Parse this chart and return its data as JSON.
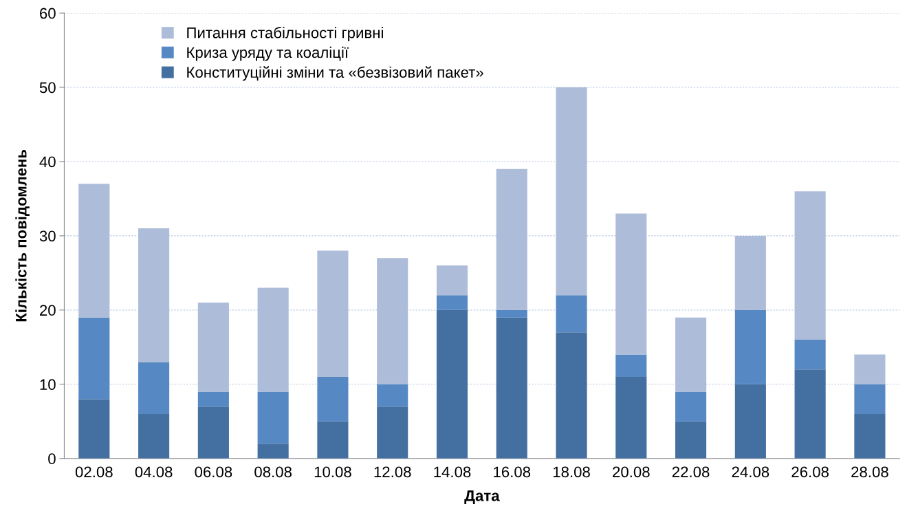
{
  "chart_data": {
    "type": "bar",
    "stacked": true,
    "xlabel": "Дата",
    "ylabel": "Кількість повідомлень",
    "categories": [
      "02.08",
      "04.08",
      "06.08",
      "08.08",
      "10.08",
      "12.08",
      "14.08",
      "16.08",
      "18.08",
      "20.08",
      "22.08",
      "24.08",
      "26.08",
      "28.08"
    ],
    "series": [
      {
        "name": "Конституційні зміни та «безвізовий пакет»",
        "color": "#446fa1",
        "values": [
          8,
          6,
          7,
          2,
          5,
          7,
          20,
          19,
          17,
          11,
          5,
          10,
          12,
          6
        ]
      },
      {
        "name": "Криза уряду та коаліції",
        "color": "#5689c3",
        "values": [
          11,
          7,
          2,
          7,
          6,
          3,
          2,
          1,
          5,
          3,
          4,
          10,
          4,
          4
        ]
      },
      {
        "name": "Питання стабільності гривні",
        "color": "#adbdd9",
        "values": [
          18,
          18,
          12,
          14,
          17,
          17,
          4,
          19,
          28,
          19,
          10,
          10,
          20,
          4
        ]
      }
    ],
    "ylim": [
      0,
      60
    ],
    "yticks": [
      0,
      10,
      20,
      30,
      40,
      50,
      60
    ],
    "grid": "y",
    "legend": "top left"
  }
}
